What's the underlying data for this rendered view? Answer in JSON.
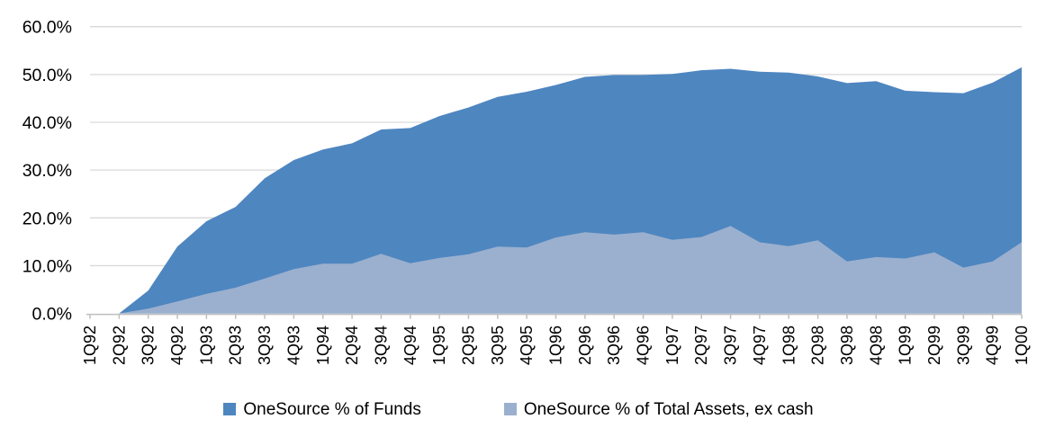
{
  "chart_data": {
    "type": "area",
    "title": "",
    "categories": [
      "1Q92",
      "2Q92",
      "3Q92",
      "4Q92",
      "1Q93",
      "2Q93",
      "3Q93",
      "4Q93",
      "1Q94",
      "2Q94",
      "3Q94",
      "4Q94",
      "1Q95",
      "2Q95",
      "3Q95",
      "4Q95",
      "1Q96",
      "2Q96",
      "3Q96",
      "4Q96",
      "1Q97",
      "2Q97",
      "3Q97",
      "4Q97",
      "1Q98",
      "2Q98",
      "3Q98",
      "4Q98",
      "1Q99",
      "2Q99",
      "3Q99",
      "4Q99",
      "1Q00"
    ],
    "series": [
      {
        "name": "OneSource % of Funds",
        "color": "#4E86C0",
        "values": [
          0.0,
          0.0,
          4.8,
          14.0,
          19.3,
          22.3,
          28.3,
          32.1,
          34.3,
          35.6,
          38.5,
          38.8,
          41.3,
          43.1,
          45.3,
          46.4,
          47.8,
          49.5,
          49.9,
          49.9,
          50.1,
          50.9,
          51.2,
          50.6,
          50.4,
          49.6,
          48.2,
          48.6,
          46.6,
          46.3,
          46.1,
          48.3,
          51.5
        ]
      },
      {
        "name": "OneSource % of Total Assets, ex cash",
        "color": "#9BB0CE",
        "values": [
          0.0,
          0.0,
          1.0,
          2.5,
          4.1,
          5.4,
          7.3,
          9.3,
          10.4,
          10.4,
          12.5,
          10.5,
          11.6,
          12.4,
          14.0,
          13.8,
          15.9,
          17.0,
          16.5,
          17.0,
          15.4,
          16.0,
          18.3,
          14.9,
          14.1,
          15.3,
          10.9,
          11.8,
          11.5,
          12.8,
          9.6,
          10.9,
          14.9
        ]
      }
    ],
    "xlabel": "",
    "ylabel": "",
    "ylim": [
      0,
      60
    ],
    "y_ticks": [
      "0.0%",
      "10.0%",
      "20.0%",
      "30.0%",
      "40.0%",
      "50.0%",
      "60.0%"
    ],
    "grid": true,
    "legend_position": "bottom",
    "series_overlap": true
  },
  "colors": {
    "background": "#FFFFFF",
    "gridline": "#D9D9D9",
    "axis": "#BFBFBF",
    "tick_text": "#000000"
  }
}
